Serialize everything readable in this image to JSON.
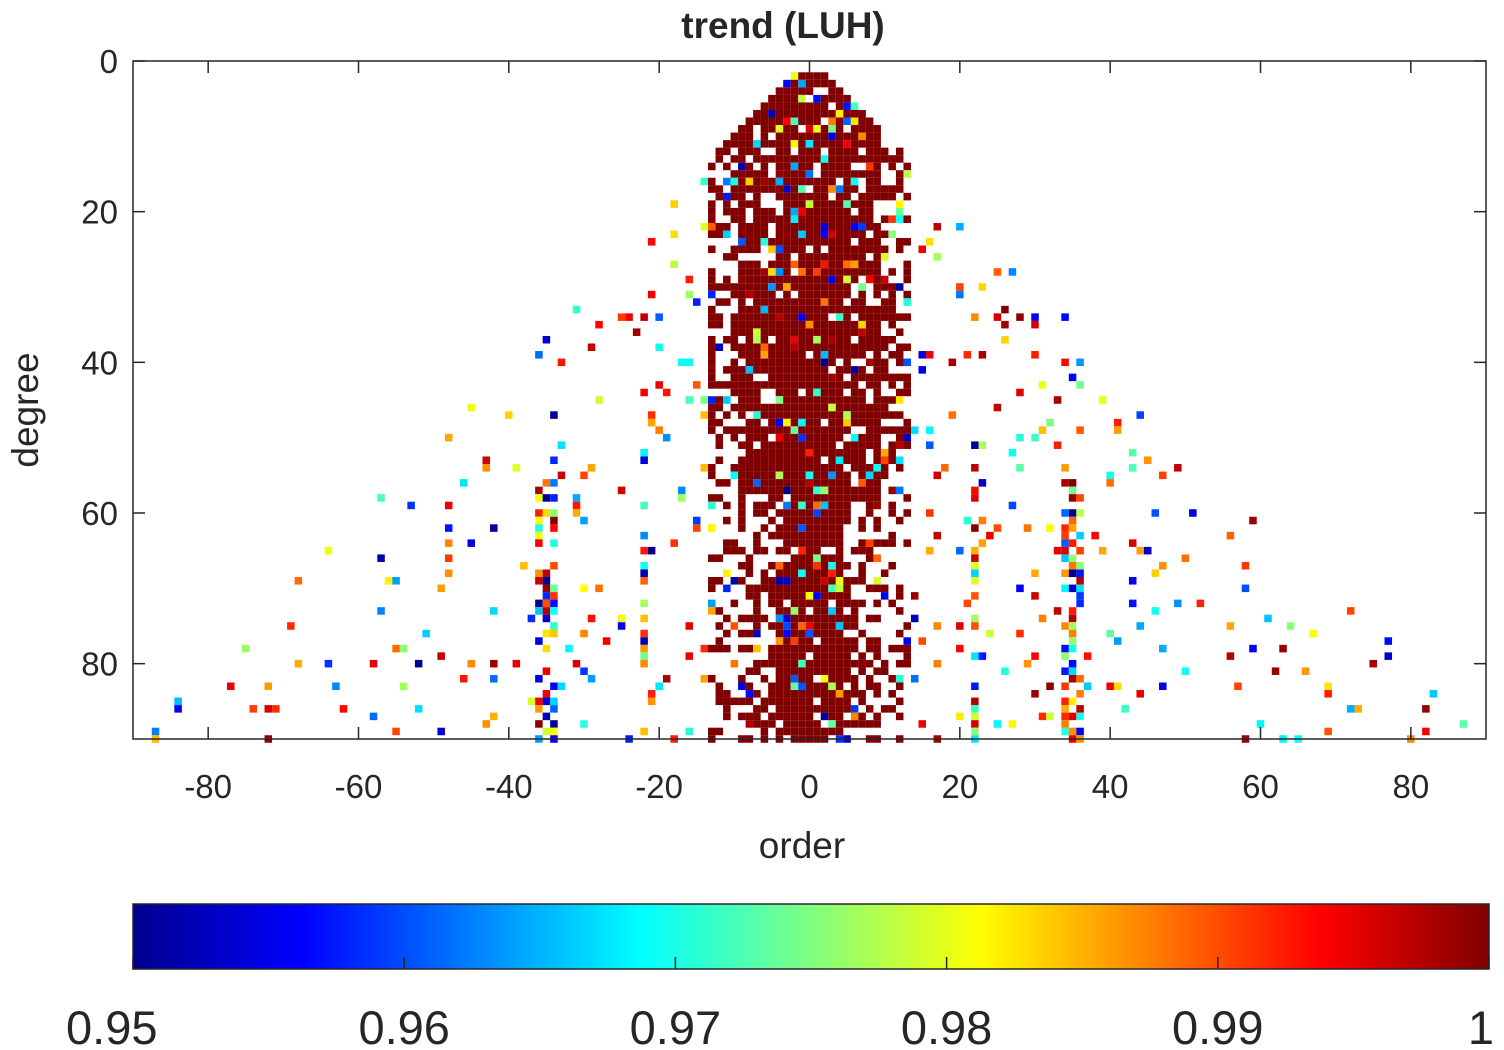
{
  "chart_data": {
    "type": "heatmap",
    "title": "trend (LUH)",
    "xlabel": "order",
    "ylabel": "degree",
    "xlim": [
      -90,
      90
    ],
    "ylim": [
      0,
      90
    ],
    "y_reversed": true,
    "x_ticks": [
      -80,
      -60,
      -40,
      -20,
      0,
      20,
      40,
      60,
      80
    ],
    "y_ticks": [
      0,
      20,
      40,
      60,
      80
    ],
    "colormap": "jet",
    "color_limits": [
      0.95,
      1
    ],
    "colorbar": {
      "location": "bottom",
      "ticks": [
        "0.95",
        "0.96",
        "0.97",
        "0.98",
        "0.99",
        "1"
      ]
    },
    "description_of_pattern": {
      "dense_region": "most coefficients near 1 (dark red) for |order| up to about 12 across all degrees; triangular envelope |order| <= degree",
      "sparse_region": "scattered values between 0.95 and 1 extending toward |order| ~ 85 at high degrees"
    }
  }
}
